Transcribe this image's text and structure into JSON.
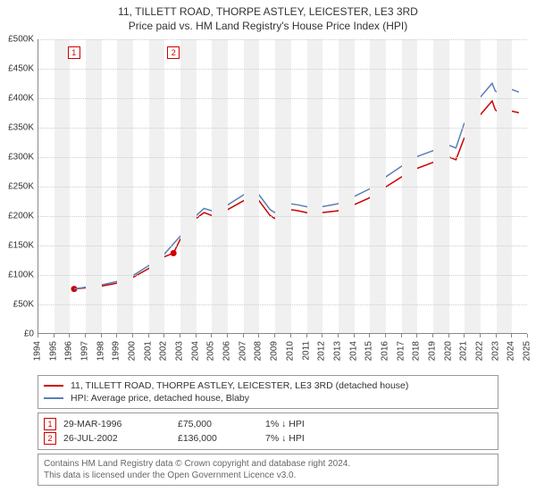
{
  "header": {
    "title": "11, TILLETT ROAD, THORPE ASTLEY, LEICESTER, LE3 3RD",
    "subtitle": "Price paid vs. HM Land Registry's House Price Index (HPI)"
  },
  "chart": {
    "type": "line",
    "background_color": "#ffffff",
    "grid_color": "#cccccc",
    "band_color": "#f0f0f0",
    "axis_color": "#888888",
    "label_fontsize": 10,
    "x": {
      "min": 1994,
      "max": 2025,
      "step": 1,
      "ticks": [
        1994,
        1995,
        1996,
        1997,
        1998,
        1999,
        2000,
        2001,
        2002,
        2003,
        2004,
        2005,
        2006,
        2007,
        2008,
        2009,
        2010,
        2011,
        2012,
        2013,
        2014,
        2015,
        2016,
        2017,
        2018,
        2019,
        2020,
        2021,
        2022,
        2023,
        2024,
        2025
      ]
    },
    "y": {
      "min": 0,
      "max": 500000,
      "step": 50000,
      "ticks": [
        "£0",
        "£50K",
        "£100K",
        "£150K",
        "£200K",
        "£250K",
        "£300K",
        "£350K",
        "£400K",
        "£450K",
        "£500K"
      ]
    },
    "series": [
      {
        "id": "price_paid",
        "label": "11, TILLETT ROAD, THORPE ASTLEY, LEICESTER, LE3 3RD (detached house)",
        "color": "#cc0000",
        "line_width": 1.5,
        "points": [
          [
            1996.25,
            75000
          ],
          [
            1997,
            77000
          ],
          [
            1998,
            80000
          ],
          [
            1999,
            85000
          ],
          [
            2000,
            95000
          ],
          [
            2001,
            110000
          ],
          [
            2002,
            130000
          ],
          [
            2002.56,
            136000
          ],
          [
            2003,
            160000
          ],
          [
            2003.5,
            175000
          ],
          [
            2004,
            195000
          ],
          [
            2004.5,
            205000
          ],
          [
            2005,
            200000
          ],
          [
            2005.5,
            205000
          ],
          [
            2006,
            210000
          ],
          [
            2007,
            225000
          ],
          [
            2007.7,
            235000
          ],
          [
            2008,
            225000
          ],
          [
            2008.7,
            200000
          ],
          [
            2009,
            195000
          ],
          [
            2009.5,
            200000
          ],
          [
            2010,
            210000
          ],
          [
            2010.5,
            208000
          ],
          [
            2011,
            205000
          ],
          [
            2012,
            205000
          ],
          [
            2013,
            208000
          ],
          [
            2014,
            218000
          ],
          [
            2015,
            230000
          ],
          [
            2016,
            248000
          ],
          [
            2017,
            265000
          ],
          [
            2018,
            280000
          ],
          [
            2019,
            290000
          ],
          [
            2020,
            300000
          ],
          [
            2020.5,
            295000
          ],
          [
            2021,
            330000
          ],
          [
            2022,
            370000
          ],
          [
            2022.8,
            395000
          ],
          [
            2023,
            380000
          ],
          [
            2023.5,
            370000
          ],
          [
            2024,
            378000
          ],
          [
            2024.5,
            375000
          ]
        ],
        "markers": [
          {
            "x": 1996.25,
            "y": 75000
          },
          {
            "x": 2002.56,
            "y": 136000
          }
        ],
        "marker_color": "#cc0000",
        "marker_radius": 3.5
      },
      {
        "id": "hpi",
        "label": "HPI: Average price, detached house, Blaby",
        "color": "#5b7fb3",
        "line_width": 1.5,
        "points": [
          [
            1996.25,
            75000
          ],
          [
            1997,
            78000
          ],
          [
            1998,
            82000
          ],
          [
            1999,
            88000
          ],
          [
            2000,
            98000
          ],
          [
            2001,
            115000
          ],
          [
            2002,
            135000
          ],
          [
            2003,
            165000
          ],
          [
            2003.5,
            180000
          ],
          [
            2004,
            200000
          ],
          [
            2004.5,
            212000
          ],
          [
            2005,
            208000
          ],
          [
            2005.5,
            212000
          ],
          [
            2006,
            218000
          ],
          [
            2007,
            235000
          ],
          [
            2007.7,
            245000
          ],
          [
            2008,
            235000
          ],
          [
            2008.7,
            210000
          ],
          [
            2009,
            205000
          ],
          [
            2009.5,
            210000
          ],
          [
            2010,
            220000
          ],
          [
            2010.5,
            218000
          ],
          [
            2011,
            215000
          ],
          [
            2012,
            215000
          ],
          [
            2013,
            220000
          ],
          [
            2014,
            232000
          ],
          [
            2015,
            245000
          ],
          [
            2016,
            265000
          ],
          [
            2017,
            283000
          ],
          [
            2018,
            300000
          ],
          [
            2019,
            310000
          ],
          [
            2020,
            320000
          ],
          [
            2020.5,
            315000
          ],
          [
            2021,
            355000
          ],
          [
            2022,
            400000
          ],
          [
            2022.8,
            425000
          ],
          [
            2023,
            412000
          ],
          [
            2023.5,
            405000
          ],
          [
            2024,
            415000
          ],
          [
            2024.5,
            410000
          ]
        ]
      }
    ],
    "event_markers": [
      {
        "num": "1",
        "x": 1996.25
      },
      {
        "num": "2",
        "x": 2002.56
      }
    ]
  },
  "legend": {
    "items": [
      {
        "color": "#cc0000",
        "label": "11, TILLETT ROAD, THORPE ASTLEY, LEICESTER, LE3 3RD (detached house)"
      },
      {
        "color": "#5b7fb3",
        "label": "HPI: Average price, detached house, Blaby"
      }
    ]
  },
  "events": {
    "rows": [
      {
        "num": "1",
        "date": "29-MAR-1996",
        "price": "£75,000",
        "pct": "1% ↓ HPI"
      },
      {
        "num": "2",
        "date": "26-JUL-2002",
        "price": "£136,000",
        "pct": "7% ↓ HPI"
      }
    ]
  },
  "attribution": {
    "line1": "Contains HM Land Registry data © Crown copyright and database right 2024.",
    "line2": "This data is licensed under the Open Government Licence v3.0."
  }
}
